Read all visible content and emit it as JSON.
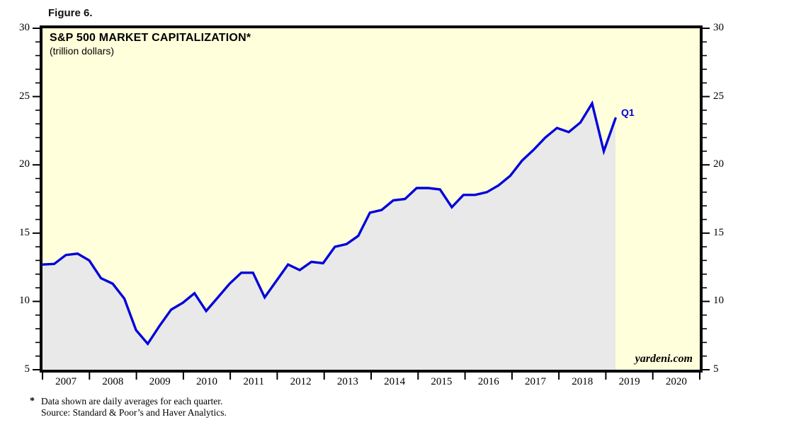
{
  "figure_label": "Figure 6.",
  "chart": {
    "title": "S&P 500 MARKET CAPITALIZATION*",
    "subtitle": "(trillion dollars)",
    "annotation": "Q1",
    "watermark": "yardeni.com"
  },
  "footnote": {
    "marker": "*",
    "line1": "Data shown are daily averages for each quarter.",
    "line2": "Source: Standard & Poor’s and Haver Analytics."
  },
  "chart_data": {
    "type": "area",
    "title": "S&P 500 MARKET CAPITALIZATION*",
    "subtitle": "(trillion dollars)",
    "ylabel": "trillion dollars",
    "ylim": [
      5,
      30
    ],
    "y_major_ticks": [
      5,
      10,
      15,
      20,
      25,
      30
    ],
    "y_minor_step": 1,
    "y_axis_mirrored": true,
    "grid": false,
    "legend": "none",
    "x_year_labels": [
      "2007",
      "2008",
      "2009",
      "2010",
      "2011",
      "2012",
      "2013",
      "2014",
      "2015",
      "2016",
      "2017",
      "2018",
      "2019",
      "2020"
    ],
    "x_axis_span_years": 14,
    "last_point_label": "Q1",
    "series": [
      {
        "name": "S&P 500 market capitalization (daily averages for each quarter)",
        "quarters": [
          "2006 Q4",
          "2007 Q1",
          "2007 Q2",
          "2007 Q3",
          "2007 Q4",
          "2008 Q1",
          "2008 Q2",
          "2008 Q3",
          "2008 Q4",
          "2009 Q1",
          "2009 Q2",
          "2009 Q3",
          "2009 Q4",
          "2010 Q1",
          "2010 Q2",
          "2010 Q3",
          "2010 Q4",
          "2011 Q1",
          "2011 Q2",
          "2011 Q3",
          "2011 Q4",
          "2012 Q1",
          "2012 Q2",
          "2012 Q3",
          "2012 Q4",
          "2013 Q1",
          "2013 Q2",
          "2013 Q3",
          "2013 Q4",
          "2014 Q1",
          "2014 Q2",
          "2014 Q3",
          "2014 Q4",
          "2015 Q1",
          "2015 Q2",
          "2015 Q3",
          "2015 Q4",
          "2016 Q1",
          "2016 Q2",
          "2016 Q3",
          "2016 Q4",
          "2017 Q1",
          "2017 Q2",
          "2017 Q3",
          "2017 Q4",
          "2018 Q1",
          "2018 Q2",
          "2018 Q3",
          "2018 Q4",
          "2019 Q1"
        ],
        "values": [
          12.7,
          12.75,
          13.4,
          13.5,
          13.0,
          11.7,
          11.3,
          10.2,
          7.9,
          6.9,
          8.2,
          9.4,
          9.9,
          10.6,
          9.3,
          10.3,
          11.3,
          12.1,
          12.1,
          10.3,
          11.5,
          12.7,
          12.3,
          12.9,
          12.8,
          14.0,
          14.2,
          14.8,
          16.5,
          16.7,
          17.4,
          17.5,
          18.3,
          18.3,
          18.2,
          16.9,
          17.8,
          17.8,
          18.0,
          18.5,
          19.2,
          20.3,
          21.1,
          22.0,
          22.7,
          22.4,
          23.1,
          24.5,
          21.0,
          23.4
        ]
      }
    ],
    "colors": {
      "line": "#0202da",
      "area_fill": "#e9e9ea",
      "plot_background": "#ffffdb",
      "axis": "#000000",
      "annotation": "#0202da"
    }
  }
}
